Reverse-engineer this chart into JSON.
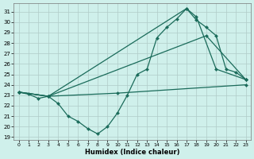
{
  "xlabel": "Humidex (Indice chaleur)",
  "bg_color": "#cff0eb",
  "line_color": "#1a6b5a",
  "grid_color": "#b0ccc8",
  "xlim": [
    -0.5,
    23.5
  ],
  "ylim_min": 18.7,
  "ylim_max": 31.8,
  "yticks": [
    19,
    20,
    21,
    22,
    23,
    24,
    25,
    26,
    27,
    28,
    29,
    30,
    31
  ],
  "xticks": [
    0,
    1,
    2,
    3,
    4,
    5,
    6,
    7,
    8,
    9,
    10,
    11,
    12,
    13,
    14,
    15,
    16,
    17,
    18,
    19,
    20,
    21,
    22,
    23
  ],
  "main_x": [
    0,
    1,
    2,
    3,
    4,
    5,
    6,
    7,
    8,
    9,
    10,
    11,
    12,
    13,
    14,
    15,
    16,
    17,
    18,
    19,
    20,
    21,
    22,
    23
  ],
  "main_y": [
    23.3,
    23.1,
    22.7,
    22.9,
    22.2,
    21.0,
    20.5,
    19.8,
    19.3,
    20.0,
    21.3,
    23.0,
    25.0,
    25.5,
    28.5,
    29.5,
    30.3,
    31.3,
    30.2,
    29.5,
    28.7,
    25.5,
    25.2,
    24.5
  ],
  "line2_x": [
    0,
    3,
    17,
    18,
    20,
    23
  ],
  "line2_y": [
    23.3,
    22.9,
    31.3,
    30.5,
    25.5,
    24.5
  ],
  "line3_x": [
    0,
    3,
    19,
    23
  ],
  "line3_y": [
    23.3,
    22.9,
    28.7,
    24.5
  ],
  "line4_x": [
    0,
    3,
    10,
    23
  ],
  "line4_y": [
    23.3,
    22.9,
    23.2,
    24.0
  ]
}
